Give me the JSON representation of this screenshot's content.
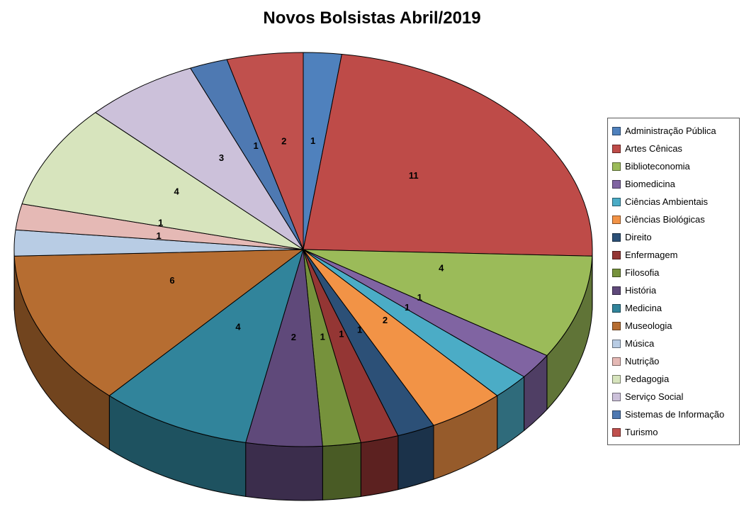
{
  "title": "Novos Bolsistas Abril/2019",
  "chart_data": {
    "type": "pie",
    "style": "3d",
    "title": "Novos Bolsistas Abril/2019",
    "legend_position": "right",
    "start_angle_deg": -90,
    "direction": "clockwise",
    "categories": [
      "Administração Pública",
      "Artes Cênicas",
      "Biblioteconomia",
      "Biomedicina",
      "Ciências Ambientais",
      "Ciências Biológicas",
      "Direito",
      "Enfermagem",
      "Filosofia",
      "História",
      "Medicina",
      "Museologia",
      "Música",
      "Nutrição",
      "Pedagogia",
      "Serviço Social",
      "Sistemas de Informação",
      "Turismo"
    ],
    "values": [
      1,
      11,
      4,
      1,
      1,
      2,
      1,
      1,
      1,
      2,
      4,
      6,
      1,
      1,
      4,
      3,
      1,
      2
    ],
    "colors": [
      "#4F81BD",
      "#BE4B48",
      "#9BBB59",
      "#8064A2",
      "#4BACC6",
      "#F29346",
      "#2C5077",
      "#943634",
      "#76923C",
      "#5F497A",
      "#31849B",
      "#B66D31",
      "#B8CCE4",
      "#E5B9B5",
      "#D7E4BD",
      "#CCC1DA",
      "#4E79B2",
      "#C0504D"
    ],
    "slice_border_color": "#000000",
    "label_color": "#000000",
    "legend_border_color": "#595959"
  }
}
